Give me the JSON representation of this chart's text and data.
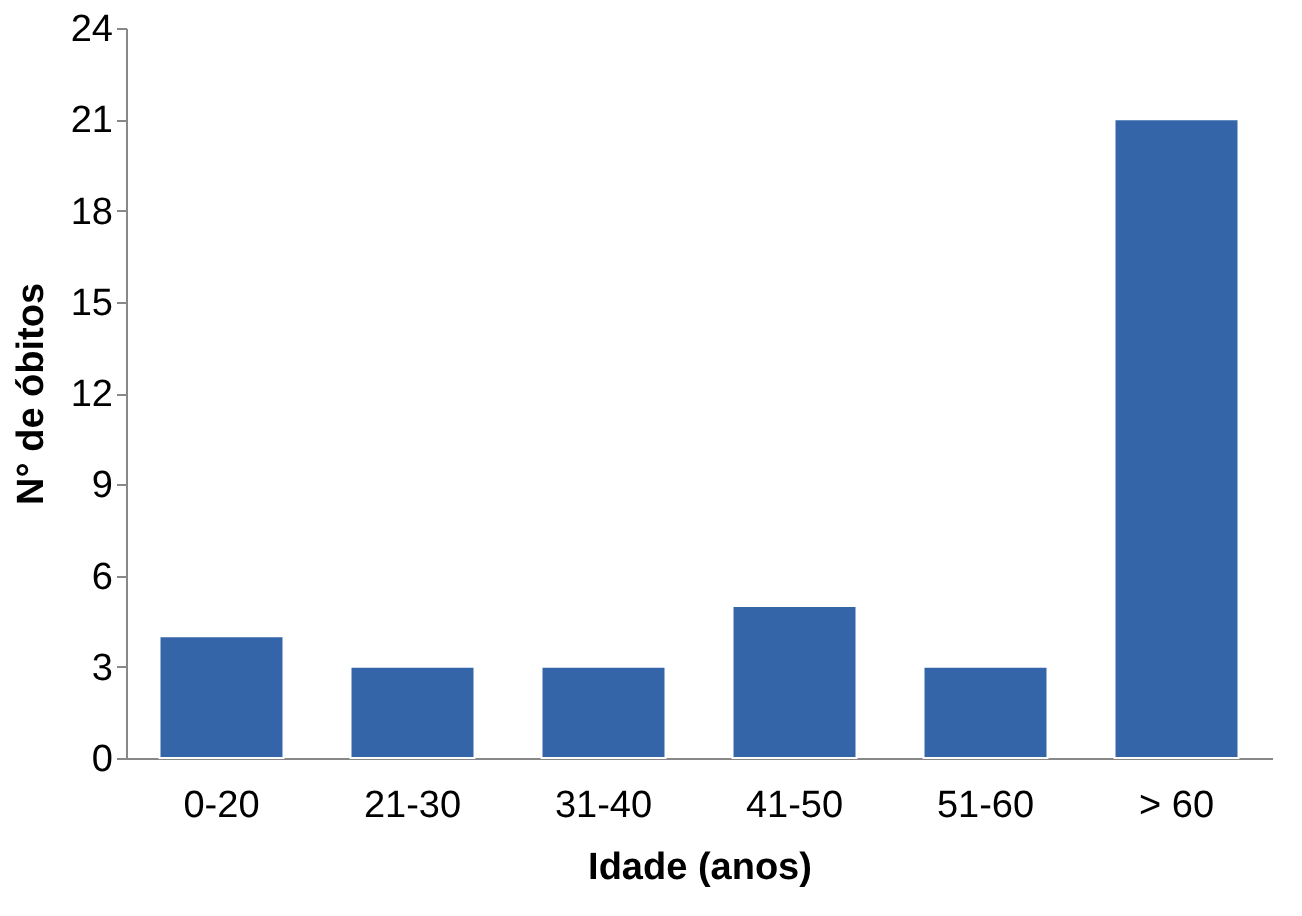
{
  "chart_data": {
    "type": "bar",
    "xlabel": "Idade (anos)",
    "ylabel": "N° de óbitos",
    "categories": [
      "0-20",
      "21-30",
      "31-40",
      "41-50",
      "51-60",
      "> 60"
    ],
    "values": [
      4,
      3,
      3,
      5,
      3,
      21
    ],
    "color": "#3465a8",
    "ylim": [
      0,
      24
    ],
    "yticks": [
      0,
      3,
      6,
      9,
      12,
      15,
      18,
      21,
      24
    ],
    "grid": false
  }
}
